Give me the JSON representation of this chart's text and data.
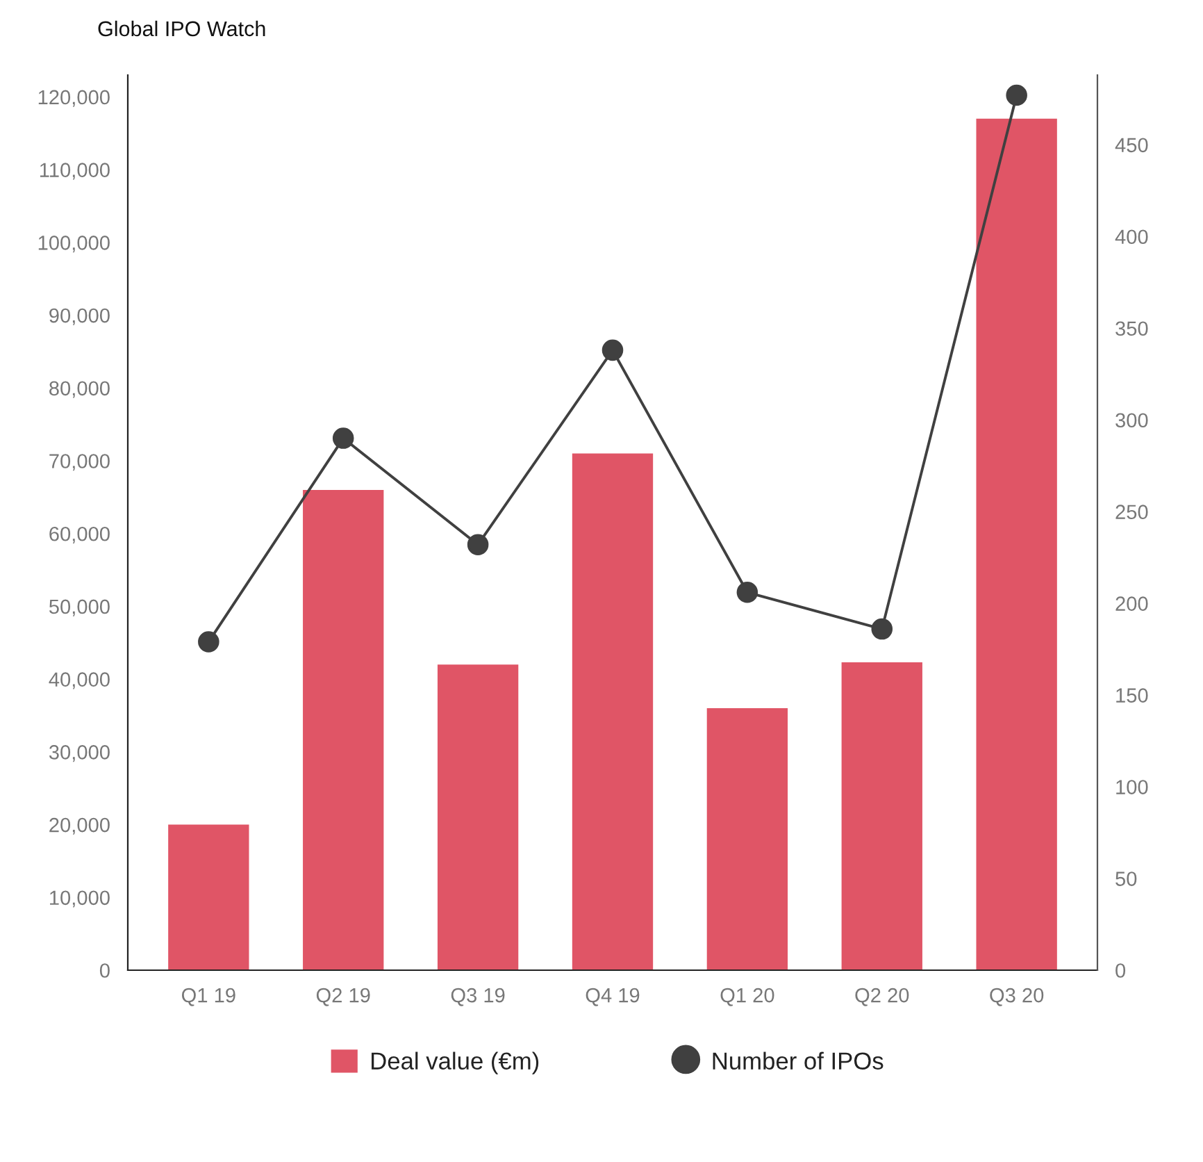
{
  "chart_data": {
    "type": "bar",
    "title": "Global IPO Watch",
    "categories": [
      "Q1 19",
      "Q2 19",
      "Q3 19",
      "Q4 19",
      "Q1 20",
      "Q2 20",
      "Q3 20"
    ],
    "series": [
      {
        "name": "Deal value (€m)",
        "color": "#e05566",
        "values": [
          20000,
          66000,
          42000,
          71000,
          36000,
          42300,
          117000
        ]
      },
      {
        "name": "Number of IPOs",
        "type": "line",
        "axis": "y2",
        "color": "#404040",
        "values": [
          179,
          290,
          232,
          338,
          206,
          186,
          477
        ]
      }
    ],
    "ylim": [
      0,
      123000
    ],
    "yticks": [
      0,
      {
        "value": 10000,
        "label": "10,000"
      },
      {
        "value": 20000,
        "label": "20,000"
      },
      {
        "value": 30000,
        "label": "30,000"
      },
      {
        "value": 40000,
        "label": "40,000"
      },
      {
        "value": 50000,
        "label": "50,000"
      },
      {
        "value": 60000,
        "label": "60,000"
      },
      {
        "value": 70000,
        "label": "70,000"
      },
      {
        "value": 80000,
        "label": "80,000"
      },
      {
        "value": 90000,
        "label": "90,000"
      },
      {
        "value": 100000,
        "label": "100,000"
      },
      {
        "value": 110000,
        "label": "110,000"
      },
      {
        "value": 120000,
        "label": "120,000"
      }
    ],
    "y2lim": [
      0,
      488
    ],
    "y2ticks": [
      0,
      50,
      100,
      150,
      200,
      250,
      300,
      350,
      400,
      450
    ],
    "marker": "circle",
    "line_style": "solid",
    "legend": "bottom",
    "grid": false
  }
}
